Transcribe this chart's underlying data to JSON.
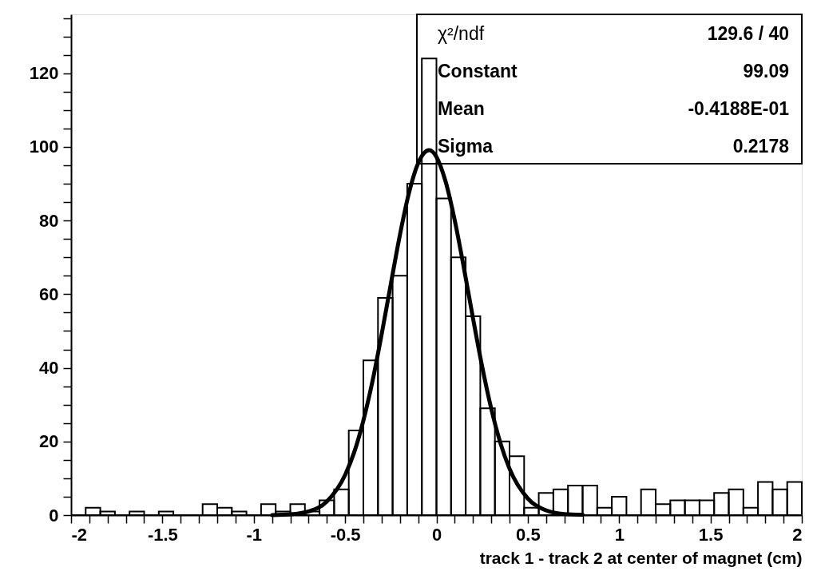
{
  "chart_data": {
    "type": "histogram",
    "xlabel": "track 1 - track 2 at center of magnet (cm)",
    "bins": [
      -2,
      -1.92,
      -1.84,
      -1.76,
      -1.68,
      -1.6,
      -1.52,
      -1.44,
      -1.36,
      -1.28,
      -1.2,
      -1.12,
      -1.04,
      -0.96,
      -0.88,
      -0.8,
      -0.72,
      -0.64,
      -0.56,
      -0.48,
      -0.4,
      -0.32,
      -0.24,
      -0.16,
      -0.08,
      0,
      0.08,
      0.16,
      0.24,
      0.32,
      0.4,
      0.48,
      0.56,
      0.64,
      0.72,
      0.8,
      0.88,
      0.96,
      1.04,
      1.12,
      1.2,
      1.28,
      1.36,
      1.44,
      1.52,
      1.6,
      1.68,
      1.76,
      1.84,
      1.92,
      2
    ],
    "values": [
      0,
      2,
      1,
      0,
      1,
      0,
      1,
      0,
      0,
      3,
      2,
      1,
      0,
      3,
      1,
      3,
      1,
      4,
      7,
      23,
      42,
      59,
      65,
      90,
      124,
      86,
      70,
      54,
      29,
      20,
      16,
      2,
      6,
      7,
      8,
      8,
      2,
      5,
      0,
      7,
      3,
      4,
      4,
      4,
      6,
      7,
      2,
      9,
      7,
      9
    ],
    "color": "#000000",
    "series": [
      {
        "type": "line",
        "color": "#000000",
        "x": [
          -0.9,
          -0.8,
          -0.7,
          -0.6,
          -0.5,
          -0.45,
          -0.4,
          -0.35,
          -0.3,
          -0.25,
          -0.2,
          -0.15,
          -0.1,
          -0.04,
          0,
          0.05,
          0.1,
          0.15,
          0.2,
          0.25,
          0.3,
          0.35,
          0.4,
          0.5,
          0.6,
          0.7,
          0.8
        ],
        "values": [
          0.0,
          0.2,
          1.0,
          3.7,
          10.9,
          17.1,
          25.7,
          36.4,
          49.1,
          62.7,
          76.1,
          87.6,
          95.6,
          99.1,
          97.3,
          90.6,
          80.1,
          67.2,
          53.5,
          40.4,
          28.9,
          19.6,
          12.6,
          4.5,
          1.3,
          0.3,
          0.1
        ]
      }
    ],
    "xlim": [
      -2,
      2
    ],
    "ylim": [
      0,
      136
    ],
    "xticks": [
      -2,
      {
        "value": -1.9,
        "label": null
      },
      {
        "value": -1.8,
        "label": null
      },
      {
        "value": -1.7,
        "label": null
      },
      {
        "value": -1.6,
        "label": null
      },
      -1.5,
      {
        "value": -1.4,
        "label": null
      },
      {
        "value": -1.3,
        "label": null
      },
      {
        "value": -1.2,
        "label": null
      },
      {
        "value": -1.1,
        "label": null
      },
      -1,
      {
        "value": -0.9,
        "label": null
      },
      {
        "value": -0.8,
        "label": null
      },
      {
        "value": -0.7,
        "label": null
      },
      {
        "value": -0.6,
        "label": null
      },
      -0.5,
      {
        "value": -0.4,
        "label": null
      },
      {
        "value": -0.3,
        "label": null
      },
      {
        "value": -0.2,
        "label": null
      },
      {
        "value": -0.1,
        "label": null
      },
      0,
      {
        "value": 0.1,
        "label": null
      },
      {
        "value": 0.2,
        "label": null
      },
      {
        "value": 0.3,
        "label": null
      },
      {
        "value": 0.4,
        "label": null
      },
      0.5,
      {
        "value": 0.6,
        "label": null
      },
      {
        "value": 0.7,
        "label": null
      },
      {
        "value": 0.8,
        "label": null
      },
      {
        "value": 0.9,
        "label": null
      },
      1,
      {
        "value": 1.1,
        "label": null
      },
      {
        "value": 1.2,
        "label": null
      },
      {
        "value": 1.3,
        "label": null
      },
      {
        "value": 1.4,
        "label": null
      },
      1.5,
      {
        "value": 1.6,
        "label": null
      },
      {
        "value": 1.7,
        "label": null
      },
      {
        "value": 1.8,
        "label": null
      },
      {
        "value": 1.9,
        "label": null
      },
      2
    ],
    "yticks": [
      0,
      {
        "value": 5,
        "label": null
      },
      {
        "value": 10,
        "label": null
      },
      {
        "value": 15,
        "label": null
      },
      20,
      {
        "value": 25,
        "label": null
      },
      {
        "value": 30,
        "label": null
      },
      {
        "value": 35,
        "label": null
      },
      40,
      {
        "value": 45,
        "label": null
      },
      {
        "value": 50,
        "label": null
      },
      {
        "value": 55,
        "label": null
      },
      60,
      {
        "value": 65,
        "label": null
      },
      {
        "value": 70,
        "label": null
      },
      {
        "value": 75,
        "label": null
      },
      80,
      {
        "value": 85,
        "label": null
      },
      {
        "value": 90,
        "label": null
      },
      {
        "value": 95,
        "label": null
      },
      100,
      {
        "value": 105,
        "label": null
      },
      {
        "value": 110,
        "label": null
      },
      {
        "value": 115,
        "label": null
      },
      120,
      {
        "value": 125,
        "label": null
      },
      {
        "value": 130,
        "label": null
      },
      {
        "value": 135,
        "label": null
      }
    ],
    "grid": false,
    "annotations": [
      "χ²/ndf",
      "129.6 / 40",
      "Constant",
      "99.09",
      "Mean",
      "-0.4188E-01",
      "Sigma",
      "0.2178"
    ]
  }
}
